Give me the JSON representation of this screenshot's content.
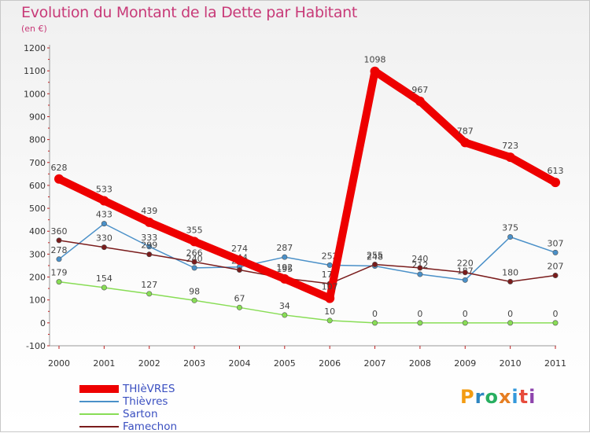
{
  "title": "Evolution du Montant de la Dette par Habitant",
  "subtitle": "(en €)",
  "brand": {
    "letters": [
      "P",
      "r",
      "o",
      "x",
      "i",
      "t",
      "i"
    ],
    "colors": [
      "#f39c12",
      "#2e86c1",
      "#27ae60",
      "#e67e22",
      "#3498db",
      "#e74c3c",
      "#8e44ad"
    ]
  },
  "chart_data": {
    "type": "line",
    "categories": [
      "2000",
      "2001",
      "2002",
      "2003",
      "2004",
      "2005",
      "2006",
      "2007",
      "2008",
      "2009",
      "2010",
      "2011"
    ],
    "ylim": [
      -100,
      1200
    ],
    "yticks": [
      -100,
      0,
      100,
      200,
      300,
      400,
      500,
      600,
      700,
      800,
      900,
      1000,
      1100,
      1200
    ],
    "grid": false,
    "legend_position": "bottom-left",
    "series": [
      {
        "name": "THIèVRES",
        "color": "#ee0000",
        "values": [
          628,
          533,
          439,
          355,
          274,
          192,
          107,
          1098,
          967,
          787,
          723,
          613
        ]
      },
      {
        "name": "Thièvres",
        "color": "#4a90c8",
        "values": [
          278,
          433,
          333,
          240,
          244,
          287,
          252,
          248,
          212,
          187,
          375,
          307
        ]
      },
      {
        "name": "Sarton",
        "color": "#88dd55",
        "values": [
          179,
          154,
          127,
          98,
          67,
          34,
          10,
          0,
          0,
          0,
          0,
          0
        ]
      },
      {
        "name": "Famechon",
        "color": "#7a1c1c",
        "values": [
          360,
          330,
          299,
          266,
          231,
          195,
          171,
          255,
          240,
          220,
          180,
          207
        ]
      }
    ]
  }
}
